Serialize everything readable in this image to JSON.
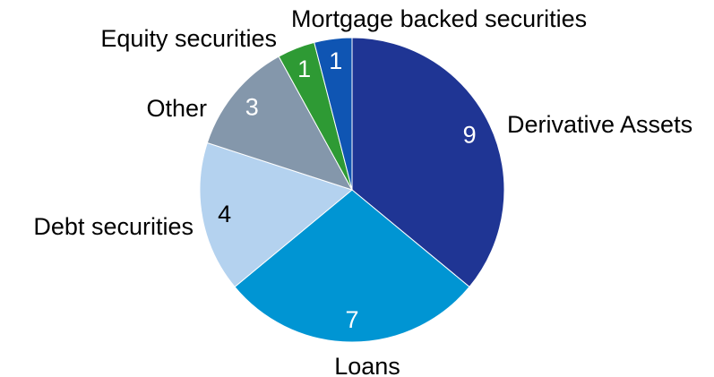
{
  "chart_data": {
    "type": "pie",
    "title": "",
    "slices": [
      {
        "label": "Derivative Assets",
        "value": 9,
        "color": "#1f3594",
        "value_color": "#ffffff"
      },
      {
        "label": "Loans",
        "value": 7,
        "color": "#0095d3",
        "value_color": "#ffffff"
      },
      {
        "label": "Debt securities",
        "value": 4,
        "color": "#b4d2ef",
        "value_color": "#000000"
      },
      {
        "label": "Other",
        "value": 3,
        "color": "#8497ab",
        "value_color": "#ffffff"
      },
      {
        "label": "Equity securities",
        "value": 1,
        "color": "#2e9a34",
        "value_color": "#ffffff"
      },
      {
        "label": "Mortgage backed securities",
        "value": 1,
        "color": "#0f55b3",
        "value_color": "#ffffff"
      }
    ],
    "start_angle_deg": 0,
    "direction": "clockwise",
    "legend": "none",
    "labels_outside": true
  }
}
